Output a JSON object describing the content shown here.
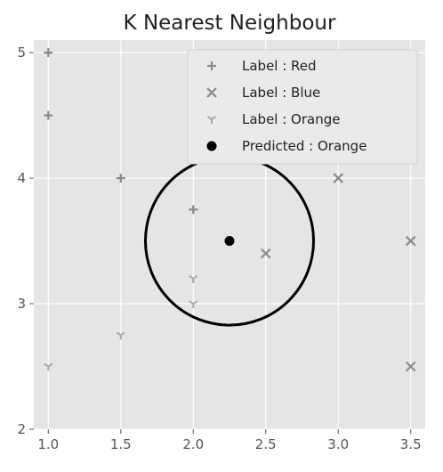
{
  "chart_data": {
    "type": "scatter",
    "title": "K Nearest Neighbour",
    "xlabel": "",
    "ylabel": "",
    "xlim": [
      0.9,
      3.6
    ],
    "ylim": [
      2.0,
      5.1
    ],
    "x_ticks": [
      "1.0",
      "1.5",
      "2.0",
      "2.5",
      "3.0",
      "3.5"
    ],
    "y_ticks": [
      "2",
      "3",
      "4",
      "5"
    ],
    "grid": true,
    "legend_position": "top-right",
    "series": [
      {
        "name": "Label : Red",
        "marker": "plus",
        "color": "#8a8a8a",
        "points": [
          [
            1.0,
            5.0
          ],
          [
            1.0,
            4.5
          ],
          [
            1.5,
            4.0
          ],
          [
            2.0,
            3.75
          ]
        ]
      },
      {
        "name": "Label : Blue",
        "marker": "x",
        "color": "#8a8a8a",
        "points": [
          [
            3.0,
            4.0
          ],
          [
            2.5,
            3.4
          ],
          [
            3.5,
            3.5
          ],
          [
            3.5,
            2.5
          ]
        ]
      },
      {
        "name": "Label : Orange",
        "marker": "tri_down",
        "color": "#a8a8a8",
        "points": [
          [
            2.0,
            3.2
          ],
          [
            2.0,
            3.0
          ],
          [
            1.5,
            2.75
          ],
          [
            1.0,
            2.5
          ]
        ]
      },
      {
        "name": "Predicted : Orange",
        "marker": "dot",
        "color": "#000000",
        "points": [
          [
            2.25,
            3.5
          ]
        ]
      }
    ],
    "annotations": [
      {
        "type": "circle",
        "center": [
          2.25,
          3.5
        ],
        "radius_data_x": 0.58
      }
    ]
  }
}
